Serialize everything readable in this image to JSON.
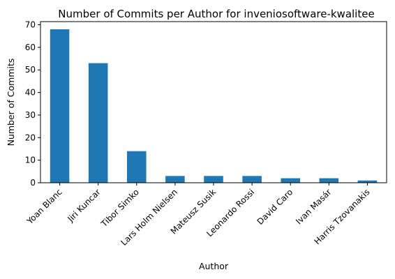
{
  "chart_data": {
    "type": "bar",
    "title": "Number of Commits per Author for inveniosoftware-kwalitee",
    "xlabel": "Author",
    "ylabel": "Number of Commits",
    "categories": [
      "Yoan Blanc",
      "Jiri Kuncar",
      "Tibor Simko",
      "Lars Holm Nielsen",
      "Mateusz Susik",
      "Leonardo Rossi",
      "David Caro",
      "Ivan Masár",
      "Harris Tzovanakis"
    ],
    "values": [
      68,
      53,
      14,
      3,
      3,
      3,
      2,
      2,
      1
    ],
    "ylim": [
      0,
      71.4
    ],
    "yticks": [
      0,
      10,
      20,
      30,
      40,
      50,
      60,
      70
    ],
    "grid": false,
    "colors": {
      "bar": "#1f77b4"
    }
  }
}
